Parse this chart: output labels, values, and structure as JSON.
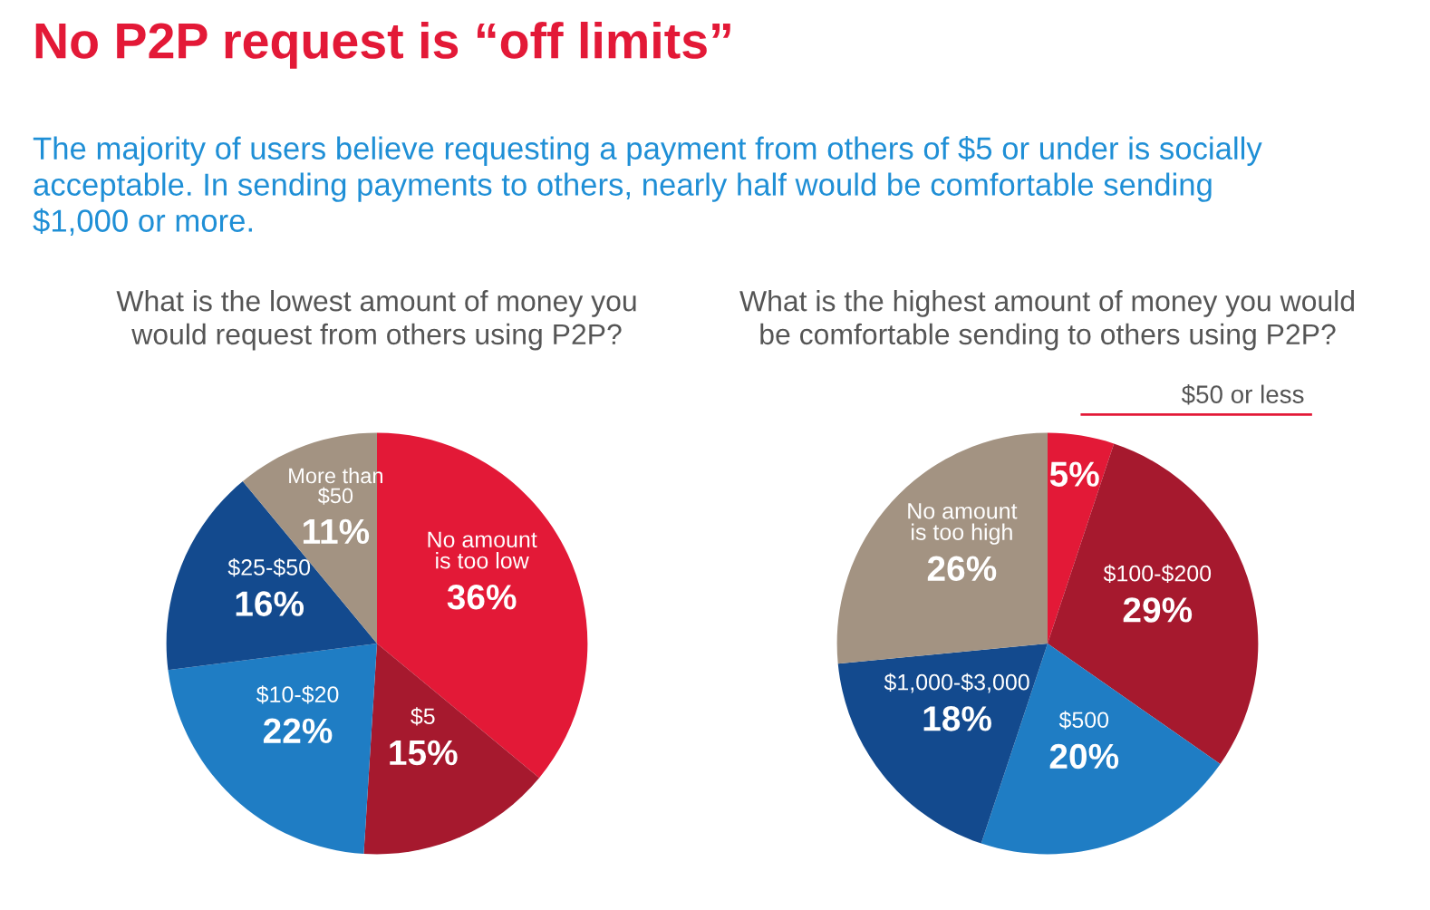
{
  "chart_data": [
    {
      "type": "pie",
      "title": "What is the lowest amount of money you\nwould request from others using P2P?",
      "annotations": [
        "No P2P request is “off limits”",
        "The majority of users believe requesting a payment from others of $5 or under is socially\nacceptable. In sending payments to others, nearly half would be comfortable sending\n$1,000 or more."
      ],
      "categories": [
        "No amount\nis too low",
        "$5",
        "$10-$20",
        "$25-$50",
        "More than\n$50"
      ],
      "values": [
        36,
        15,
        22,
        16,
        11
      ],
      "value_labels": [
        "36%",
        "15%",
        "22%",
        "16%",
        "11%"
      ],
      "colors": [
        "#e31937",
        "#a6192e",
        "#1f7dc4",
        "#134a8e",
        "#a39382"
      ]
    },
    {
      "type": "pie",
      "title": "What is the highest amount of money you would\nbe comfortable sending to others using P2P?",
      "categories": [
        "$50 or less",
        "$100-$200",
        "$500",
        "$1,000-$3,000",
        "No amount\nis too high"
      ],
      "values": [
        5,
        29,
        20,
        18,
        26
      ],
      "value_labels": [
        "5%",
        "29%",
        "20%",
        "18%",
        "26%"
      ],
      "colors": [
        "#e31937",
        "#a6192e",
        "#1f7dc4",
        "#134a8e",
        "#a39382"
      ]
    }
  ]
}
